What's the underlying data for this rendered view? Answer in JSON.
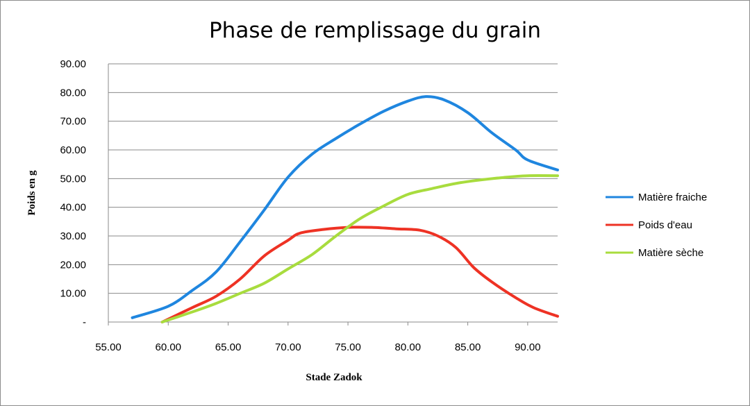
{
  "chart_data": {
    "type": "line",
    "title": "Phase de remplissage du grain",
    "xlabel": "Stade Zadok",
    "ylabel": "Poids en g",
    "xlim": [
      55,
      92.5
    ],
    "ylim": [
      0,
      90
    ],
    "x_ticks": [
      55,
      60,
      65,
      70,
      75,
      80,
      85,
      90
    ],
    "x_tick_labels": [
      "55.00",
      "60.00",
      "65.00",
      "70.00",
      "75.00",
      "80.00",
      "85.00",
      "90.00"
    ],
    "y_ticks": [
      0,
      10,
      20,
      30,
      40,
      50,
      60,
      70,
      80,
      90
    ],
    "y_tick_labels": [
      "-",
      "10.00",
      "20.00",
      "30.00",
      "40.00",
      "50.00",
      "60.00",
      "70.00",
      "80.00",
      "90.00"
    ],
    "grid": "horizontal",
    "legend_position": "right",
    "series": [
      {
        "name": "Matière fraiche",
        "color": "#1f86df",
        "points": [
          [
            57,
            1.5
          ],
          [
            60,
            5.5
          ],
          [
            62,
            11
          ],
          [
            64,
            17.5
          ],
          [
            66,
            28
          ],
          [
            68,
            39
          ],
          [
            70,
            50.5
          ],
          [
            72,
            58.5
          ],
          [
            74,
            64
          ],
          [
            76,
            69
          ],
          [
            78,
            73.5
          ],
          [
            80,
            77
          ],
          [
            81.5,
            78.6
          ],
          [
            83,
            77.5
          ],
          [
            85,
            73
          ],
          [
            87,
            66
          ],
          [
            89,
            60
          ],
          [
            90,
            56.5
          ],
          [
            92.5,
            53
          ]
        ]
      },
      {
        "name": "Poids d'eau",
        "color": "#ee3224",
        "points": [
          [
            59.5,
            0
          ],
          [
            62,
            5
          ],
          [
            64,
            9
          ],
          [
            66,
            15
          ],
          [
            68,
            23
          ],
          [
            70,
            28.5
          ],
          [
            71,
            31
          ],
          [
            73,
            32.3
          ],
          [
            75,
            33
          ],
          [
            77,
            33
          ],
          [
            79,
            32.5
          ],
          [
            81,
            32
          ],
          [
            82.5,
            30
          ],
          [
            84,
            26
          ],
          [
            85.5,
            19
          ],
          [
            87,
            14
          ],
          [
            89,
            8.5
          ],
          [
            90.5,
            5
          ],
          [
            92.5,
            2
          ]
        ]
      },
      {
        "name": "Matière sèche",
        "color": "#a8dc3e",
        "points": [
          [
            59.5,
            0
          ],
          [
            62,
            3.5
          ],
          [
            64,
            6.5
          ],
          [
            66,
            10
          ],
          [
            68,
            13.5
          ],
          [
            70,
            18.5
          ],
          [
            72,
            23.5
          ],
          [
            74,
            30
          ],
          [
            76,
            36
          ],
          [
            78,
            40.5
          ],
          [
            80,
            44.5
          ],
          [
            82,
            46.5
          ],
          [
            84,
            48.3
          ],
          [
            86,
            49.5
          ],
          [
            88,
            50.4
          ],
          [
            90,
            51
          ],
          [
            92.5,
            51
          ]
        ]
      }
    ]
  }
}
